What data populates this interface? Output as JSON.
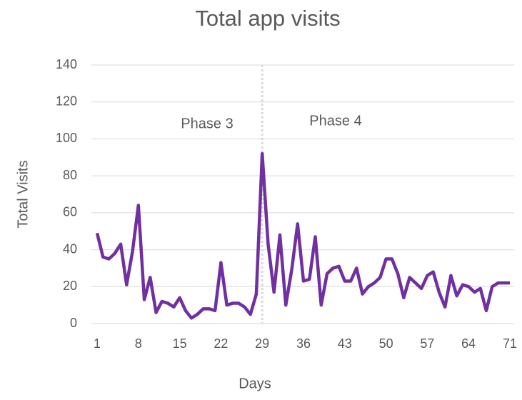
{
  "chart_data": {
    "type": "line",
    "title": "Total app visits",
    "x_label": "Days",
    "y_label": "Total Visits",
    "x": [
      1,
      2,
      3,
      4,
      5,
      6,
      7,
      8,
      9,
      10,
      11,
      12,
      13,
      14,
      15,
      16,
      17,
      18,
      19,
      20,
      21,
      22,
      23,
      24,
      25,
      26,
      27,
      28,
      29,
      30,
      31,
      32,
      33,
      34,
      35,
      36,
      37,
      38,
      39,
      40,
      41,
      42,
      43,
      44,
      45,
      46,
      47,
      48,
      49,
      50,
      51,
      52,
      53,
      54,
      55,
      56,
      57,
      58,
      59,
      60,
      61,
      62,
      63,
      64,
      65,
      66,
      67,
      68,
      69,
      70,
      71
    ],
    "series": [
      {
        "name": "Total Visits",
        "color": "#7030a0",
        "values": [
          49,
          36,
          35,
          38,
          43,
          21,
          39,
          64,
          13,
          25,
          6,
          12,
          11,
          9,
          14,
          7,
          3,
          5,
          8,
          8,
          7,
          33,
          10,
          11,
          11,
          9,
          5,
          16,
          92,
          43,
          17,
          48,
          10,
          29,
          54,
          23,
          24,
          47,
          10,
          27,
          30,
          31,
          23,
          23,
          30,
          16,
          20,
          22,
          25,
          35,
          35,
          27,
          14,
          25,
          22,
          19,
          26,
          28,
          17,
          9,
          26,
          15,
          21,
          20,
          17,
          19,
          7,
          20,
          22,
          22,
          22
        ]
      }
    ],
    "xlim": [
      1,
      71
    ],
    "xticks": [
      1,
      8,
      15,
      22,
      29,
      36,
      43,
      50,
      57,
      64,
      71
    ],
    "ylim": [
      0,
      140
    ],
    "yticks": [
      0,
      20,
      40,
      60,
      80,
      100,
      120,
      140
    ],
    "grid": true,
    "divider_x": 29,
    "divider_color": "#d9d9d9",
    "annotations": [
      "Phase 3",
      "Phase 4"
    ]
  }
}
